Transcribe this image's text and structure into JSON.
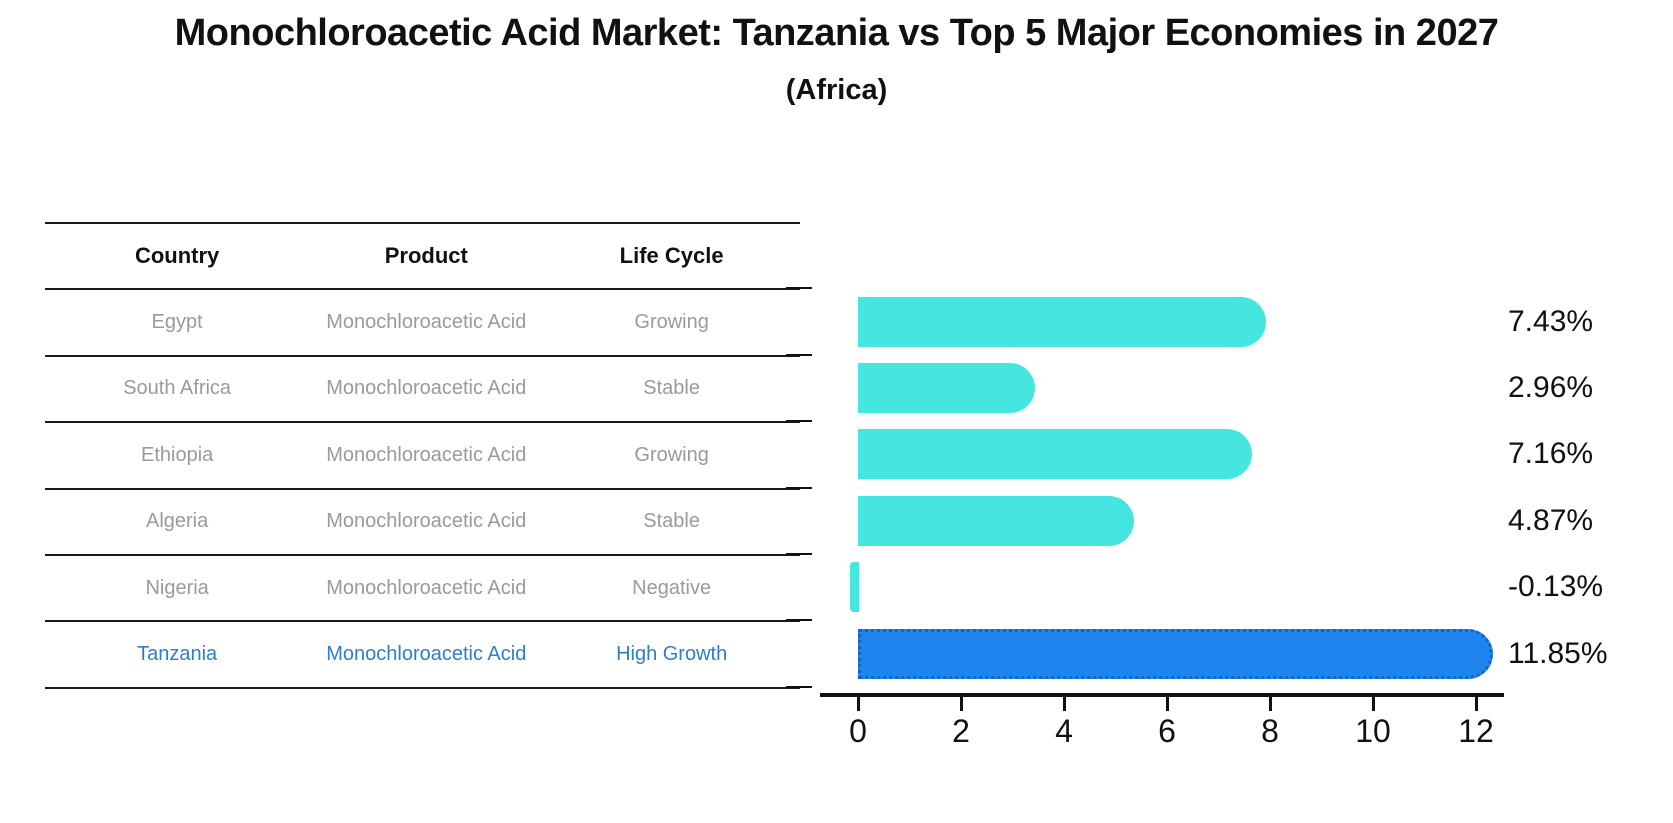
{
  "title": "Monochloroacetic Acid Market: Tanzania vs Top 5 Major Economies in 2027",
  "subtitle": "(Africa)",
  "table": {
    "headers": [
      "Country",
      "Product",
      "Life Cycle"
    ],
    "rows": [
      {
        "country": "Egypt",
        "product": "Monochloroacetic Acid",
        "life_cycle": "Growing",
        "highlight": false
      },
      {
        "country": "South Africa",
        "product": "Monochloroacetic Acid",
        "life_cycle": "Stable",
        "highlight": false
      },
      {
        "country": "Ethiopia",
        "product": "Monochloroacetic Acid",
        "life_cycle": "Growing",
        "highlight": false
      },
      {
        "country": "Algeria",
        "product": "Monochloroacetic Acid",
        "life_cycle": "Stable",
        "highlight": false
      },
      {
        "country": "Nigeria",
        "product": "Monochloroacetic Acid",
        "life_cycle": "Negative",
        "highlight": false
      },
      {
        "country": "Tanzania",
        "product": "Monochloroacetic Acid",
        "life_cycle": "High Growth",
        "highlight": true
      }
    ]
  },
  "chart_data": {
    "type": "bar",
    "orientation": "horizontal",
    "title": "Monochloroacetic Acid Market: Tanzania vs Top 5 Major Economies in 2027 (Africa)",
    "categories": [
      "Egypt",
      "South Africa",
      "Ethiopia",
      "Algeria",
      "Nigeria",
      "Tanzania"
    ],
    "values": [
      7.43,
      2.96,
      7.16,
      4.87,
      -0.13,
      11.85
    ],
    "value_labels": [
      "7.43%",
      "2.96%",
      "7.16%",
      "4.87%",
      "-0.13%",
      "11.85%"
    ],
    "x_ticks": [
      0,
      2,
      4,
      6,
      8,
      10,
      12
    ],
    "xlim": [
      -0.3,
      12.6
    ],
    "grid": false,
    "legend": false,
    "highlight_index": 5
  },
  "colors": {
    "bar": "#45e6e0",
    "highlight_bar": "#1e85ee",
    "highlight_border": "#1565c0",
    "highlight_text": "#2f7ec9",
    "row_text": "#9a9a9a",
    "header_text": "#111111",
    "axis": "#111111"
  }
}
